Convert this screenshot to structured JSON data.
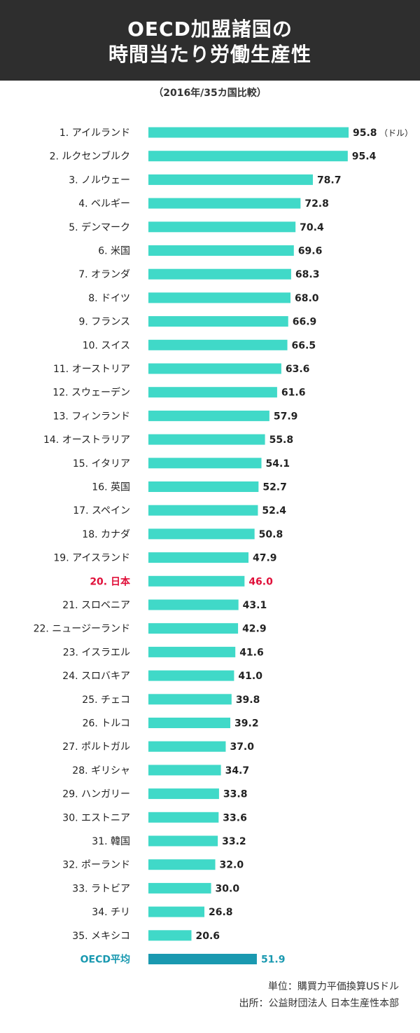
{
  "header": {
    "title_line1": "OECD加盟諸国の",
    "title_line2": "時間当たり労働生産性"
  },
  "subtitle": "（2016年/35カ国比較）",
  "footer": {
    "unit": "単位：購買力平価換算USドル",
    "source": "出所：公益財団法人 日本生産性本部"
  },
  "colors": {
    "bar": "#40d9c8",
    "highlight_text": "#e0103a",
    "average_bar": "#1a99b0",
    "average_text": "#1a99b0",
    "text": "#222222"
  },
  "chart_data": {
    "type": "bar",
    "orientation": "horizontal",
    "title": "OECD加盟諸国の時間当たり労働生産性",
    "subtitle": "（2016年/35カ国比較）",
    "unit_note": "（ドル）",
    "xlim": [
      0,
      100
    ],
    "grid": false,
    "categories": [
      "1. アイルランド",
      "2. ルクセンブルク",
      "3. ノルウェー",
      "4. ベルギー",
      "5. デンマーク",
      "6. 米国",
      "7. オランダ",
      "8. ドイツ",
      "9. フランス",
      "10. スイス",
      "11. オーストリア",
      "12. スウェーデン",
      "13. フィンランド",
      "14. オーストラリア",
      "15. イタリア",
      "16. 英国",
      "17. スペイン",
      "18. カナダ",
      "19. アイスランド",
      "20. 日本",
      "21. スロベニア",
      "22. ニュージーランド",
      "23. イスラエル",
      "24. スロバキア",
      "25. チェコ",
      "26. トルコ",
      "27. ポルトガル",
      "28. ギリシャ",
      "29. ハンガリー",
      "30. エストニア",
      "31. 韓国",
      "32. ポーランド",
      "33. ラトビア",
      "34. チリ",
      "35. メキシコ",
      "OECD平均"
    ],
    "values": [
      95.8,
      95.4,
      78.7,
      72.8,
      70.4,
      69.6,
      68.3,
      68.0,
      66.9,
      66.5,
      63.6,
      61.6,
      57.9,
      55.8,
      54.1,
      52.7,
      52.4,
      50.8,
      47.9,
      46.0,
      43.1,
      42.9,
      41.6,
      41.0,
      39.8,
      39.2,
      37.0,
      34.7,
      33.8,
      33.6,
      33.2,
      32.0,
      30.0,
      26.8,
      20.6,
      51.9
    ],
    "value_labels": [
      "95.8",
      "95.4",
      "78.7",
      "72.8",
      "70.4",
      "69.6",
      "68.3",
      "68.0",
      "66.9",
      "66.5",
      "63.6",
      "61.6",
      "57.9",
      "55.8",
      "54.1",
      "52.7",
      "52.4",
      "50.8",
      "47.9",
      "46.0",
      "43.1",
      "42.9",
      "41.6",
      "41.0",
      "39.8",
      "39.2",
      "37.0",
      "34.7",
      "33.8",
      "33.6",
      "33.2",
      "32.0",
      "30.0",
      "26.8",
      "20.6",
      "51.9"
    ],
    "highlight_category": "20. 日本",
    "average_category": "OECD平均"
  }
}
